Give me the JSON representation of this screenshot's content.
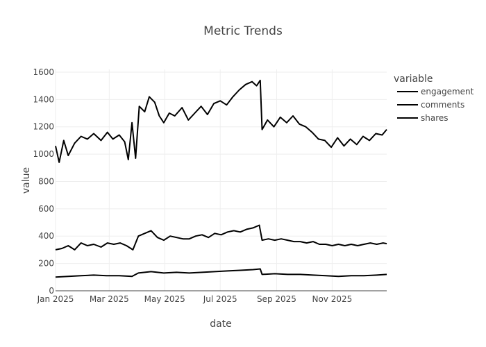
{
  "chart_data": {
    "type": "line",
    "title": "Metric Trends",
    "xlabel": "date",
    "ylabel": "value",
    "x_start": "2025-01-01",
    "x_end": "2025-12-31",
    "x_ticks": [
      {
        "date": "2025-01-01",
        "label": "Jan 2025"
      },
      {
        "date": "2025-03-01",
        "label": "Mar 2025"
      },
      {
        "date": "2025-05-01",
        "label": "May 2025"
      },
      {
        "date": "2025-07-01",
        "label": "Jul 2025"
      },
      {
        "date": "2025-09-01",
        "label": "Sep 2025"
      },
      {
        "date": "2025-11-01",
        "label": "Nov 2025"
      }
    ],
    "y_ticks": [
      0,
      200,
      400,
      600,
      800,
      1000,
      1200,
      1400,
      1600
    ],
    "ylim": [
      0,
      1620
    ],
    "legend_title": "variable",
    "legend_position": "top-right",
    "grid": true,
    "line_color": "#000000",
    "series": [
      {
        "name": "engagement",
        "points": [
          [
            "2025-01-01",
            1060
          ],
          [
            "2025-01-05",
            940
          ],
          [
            "2025-01-10",
            1100
          ],
          [
            "2025-01-15",
            990
          ],
          [
            "2025-01-22",
            1080
          ],
          [
            "2025-01-29",
            1130
          ],
          [
            "2025-02-05",
            1110
          ],
          [
            "2025-02-12",
            1150
          ],
          [
            "2025-02-20",
            1100
          ],
          [
            "2025-02-27",
            1160
          ],
          [
            "2025-03-05",
            1110
          ],
          [
            "2025-03-12",
            1140
          ],
          [
            "2025-03-18",
            1090
          ],
          [
            "2025-03-22",
            960
          ],
          [
            "2025-03-26",
            1230
          ],
          [
            "2025-03-30",
            970
          ],
          [
            "2025-04-03",
            1350
          ],
          [
            "2025-04-09",
            1310
          ],
          [
            "2025-04-14",
            1420
          ],
          [
            "2025-04-20",
            1380
          ],
          [
            "2025-04-25",
            1280
          ],
          [
            "2025-04-30",
            1230
          ],
          [
            "2025-05-06",
            1300
          ],
          [
            "2025-05-12",
            1280
          ],
          [
            "2025-05-20",
            1340
          ],
          [
            "2025-05-27",
            1250
          ],
          [
            "2025-06-03",
            1300
          ],
          [
            "2025-06-10",
            1350
          ],
          [
            "2025-06-17",
            1290
          ],
          [
            "2025-06-24",
            1370
          ],
          [
            "2025-07-01",
            1390
          ],
          [
            "2025-07-08",
            1360
          ],
          [
            "2025-07-15",
            1420
          ],
          [
            "2025-07-22",
            1470
          ],
          [
            "2025-07-29",
            1510
          ],
          [
            "2025-08-05",
            1530
          ],
          [
            "2025-08-10",
            1500
          ],
          [
            "2025-08-14",
            1540
          ],
          [
            "2025-08-16",
            1180
          ],
          [
            "2025-08-22",
            1250
          ],
          [
            "2025-08-29",
            1200
          ],
          [
            "2025-09-05",
            1270
          ],
          [
            "2025-09-12",
            1230
          ],
          [
            "2025-09-19",
            1280
          ],
          [
            "2025-09-26",
            1220
          ],
          [
            "2025-10-03",
            1200
          ],
          [
            "2025-10-10",
            1160
          ],
          [
            "2025-10-17",
            1110
          ],
          [
            "2025-10-24",
            1100
          ],
          [
            "2025-10-31",
            1050
          ],
          [
            "2025-11-07",
            1120
          ],
          [
            "2025-11-14",
            1060
          ],
          [
            "2025-11-21",
            1110
          ],
          [
            "2025-11-28",
            1070
          ],
          [
            "2025-12-05",
            1130
          ],
          [
            "2025-12-12",
            1100
          ],
          [
            "2025-12-19",
            1150
          ],
          [
            "2025-12-26",
            1140
          ],
          [
            "2025-12-31",
            1180
          ]
        ]
      },
      {
        "name": "comments",
        "points": [
          [
            "2025-01-01",
            300
          ],
          [
            "2025-01-08",
            310
          ],
          [
            "2025-01-15",
            330
          ],
          [
            "2025-01-22",
            300
          ],
          [
            "2025-01-29",
            350
          ],
          [
            "2025-02-05",
            330
          ],
          [
            "2025-02-12",
            340
          ],
          [
            "2025-02-20",
            320
          ],
          [
            "2025-02-27",
            350
          ],
          [
            "2025-03-06",
            340
          ],
          [
            "2025-03-13",
            350
          ],
          [
            "2025-03-20",
            330
          ],
          [
            "2025-03-27",
            300
          ],
          [
            "2025-04-02",
            400
          ],
          [
            "2025-04-09",
            420
          ],
          [
            "2025-04-16",
            440
          ],
          [
            "2025-04-23",
            390
          ],
          [
            "2025-04-30",
            370
          ],
          [
            "2025-05-07",
            400
          ],
          [
            "2025-05-14",
            390
          ],
          [
            "2025-05-21",
            380
          ],
          [
            "2025-05-28",
            380
          ],
          [
            "2025-06-04",
            400
          ],
          [
            "2025-06-11",
            410
          ],
          [
            "2025-06-18",
            390
          ],
          [
            "2025-06-25",
            420
          ],
          [
            "2025-07-02",
            410
          ],
          [
            "2025-07-09",
            430
          ],
          [
            "2025-07-16",
            440
          ],
          [
            "2025-07-23",
            430
          ],
          [
            "2025-07-30",
            450
          ],
          [
            "2025-08-06",
            460
          ],
          [
            "2025-08-13",
            480
          ],
          [
            "2025-08-16",
            370
          ],
          [
            "2025-08-23",
            380
          ],
          [
            "2025-08-30",
            370
          ],
          [
            "2025-09-06",
            380
          ],
          [
            "2025-09-13",
            370
          ],
          [
            "2025-09-20",
            360
          ],
          [
            "2025-09-27",
            360
          ],
          [
            "2025-10-04",
            350
          ],
          [
            "2025-10-11",
            360
          ],
          [
            "2025-10-18",
            340
          ],
          [
            "2025-10-25",
            340
          ],
          [
            "2025-11-01",
            330
          ],
          [
            "2025-11-08",
            340
          ],
          [
            "2025-11-15",
            330
          ],
          [
            "2025-11-22",
            340
          ],
          [
            "2025-11-29",
            330
          ],
          [
            "2025-12-06",
            340
          ],
          [
            "2025-12-13",
            350
          ],
          [
            "2025-12-20",
            340
          ],
          [
            "2025-12-27",
            350
          ],
          [
            "2025-12-31",
            345
          ]
        ]
      },
      {
        "name": "shares",
        "points": [
          [
            "2025-01-01",
            100
          ],
          [
            "2025-01-15",
            105
          ],
          [
            "2025-01-29",
            110
          ],
          [
            "2025-02-12",
            115
          ],
          [
            "2025-02-26",
            110
          ],
          [
            "2025-03-12",
            110
          ],
          [
            "2025-03-26",
            105
          ],
          [
            "2025-04-02",
            130
          ],
          [
            "2025-04-16",
            140
          ],
          [
            "2025-04-30",
            130
          ],
          [
            "2025-05-14",
            135
          ],
          [
            "2025-05-28",
            130
          ],
          [
            "2025-06-11",
            135
          ],
          [
            "2025-06-25",
            140
          ],
          [
            "2025-07-09",
            145
          ],
          [
            "2025-07-23",
            150
          ],
          [
            "2025-08-06",
            155
          ],
          [
            "2025-08-14",
            160
          ],
          [
            "2025-08-16",
            120
          ],
          [
            "2025-08-30",
            125
          ],
          [
            "2025-09-13",
            120
          ],
          [
            "2025-09-27",
            120
          ],
          [
            "2025-10-11",
            115
          ],
          [
            "2025-10-25",
            110
          ],
          [
            "2025-11-08",
            105
          ],
          [
            "2025-11-22",
            110
          ],
          [
            "2025-12-06",
            110
          ],
          [
            "2025-12-20",
            115
          ],
          [
            "2025-12-31",
            120
          ]
        ]
      }
    ]
  }
}
